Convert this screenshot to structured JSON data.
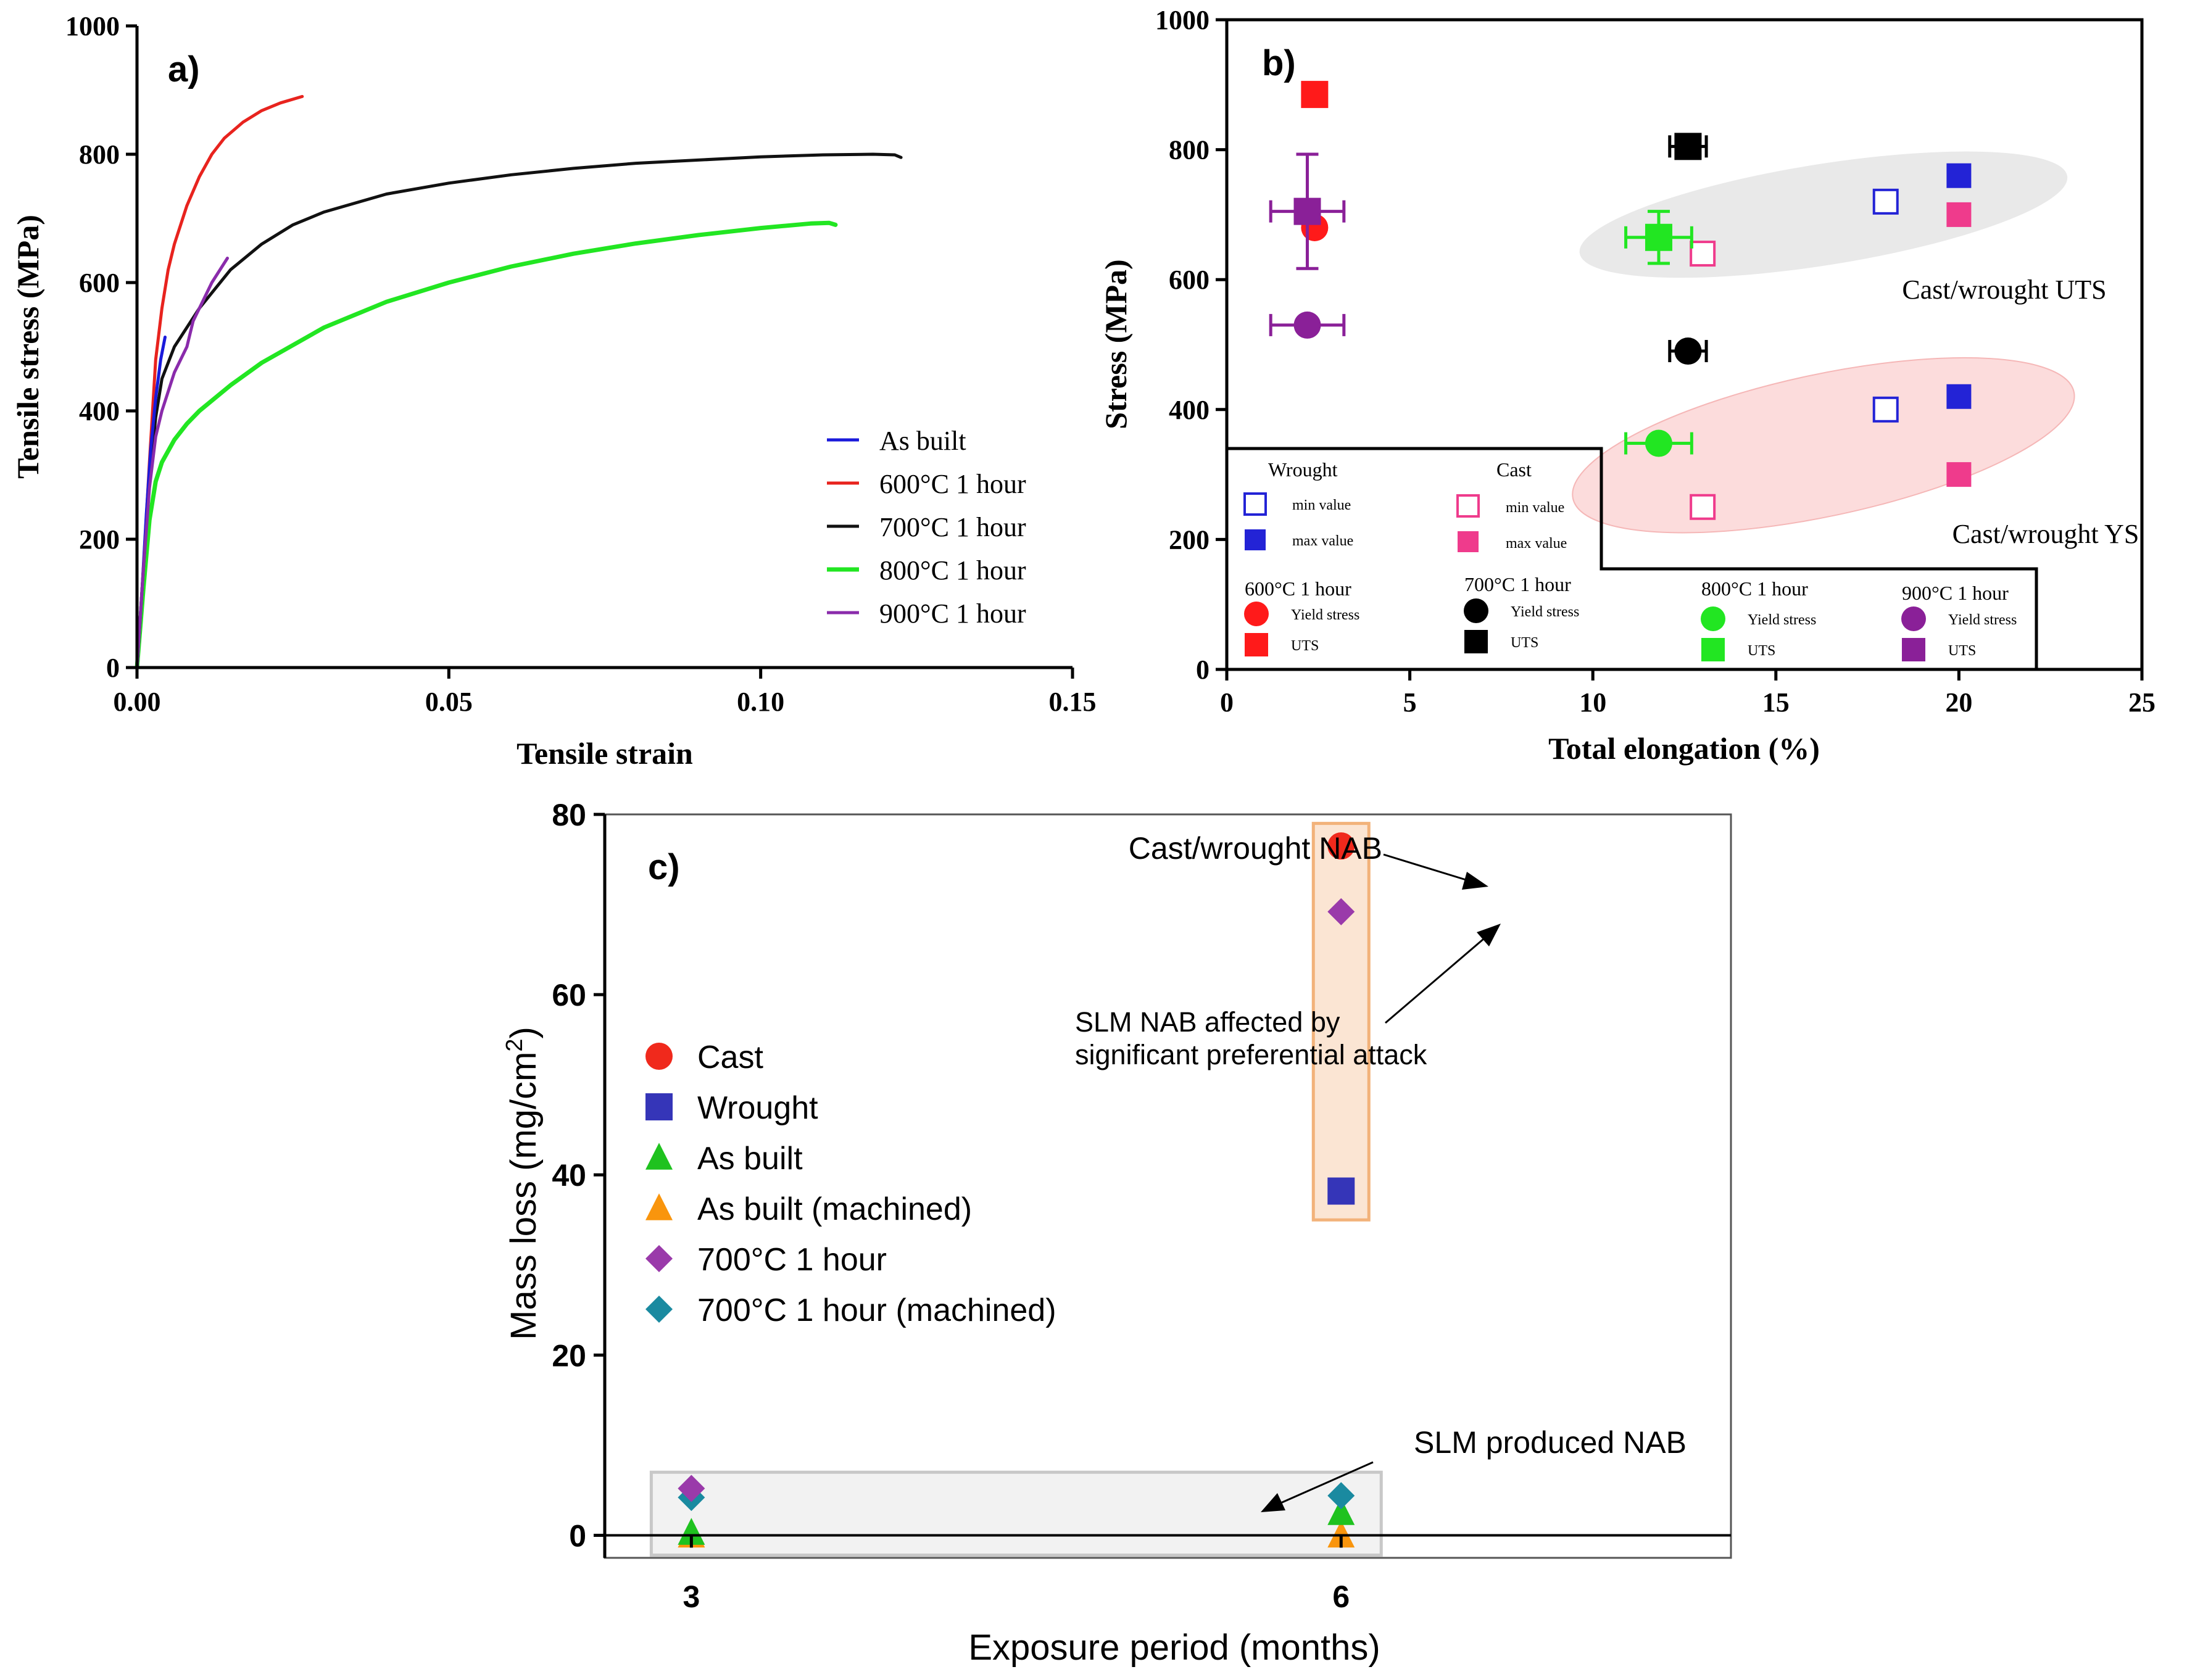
{
  "chart_data": [
    {
      "panel_label": "a)",
      "type": "line",
      "xlabel": "Tensile strain",
      "ylabel": "Tensile stress (MPa)",
      "xlim": [
        0,
        0.15
      ],
      "ylim": [
        0,
        1000
      ],
      "xticks": [
        "0.00",
        "0.05",
        "0.10",
        "0.15"
      ],
      "yticks": [
        "0",
        "200",
        "400",
        "600",
        "800",
        "1000"
      ],
      "legend_position": "lower-right",
      "series": [
        {
          "name": "As built",
          "color": "#1a1adb",
          "x": [
            0,
            0.0008,
            0.0015,
            0.0022,
            0.003,
            0.0038,
            0.0045
          ],
          "y": [
            0,
            120,
            240,
            340,
            420,
            480,
            515
          ]
        },
        {
          "name": "600°C 1 hour",
          "color": "#e8231e",
          "x": [
            0,
            0.001,
            0.002,
            0.003,
            0.004,
            0.005,
            0.006,
            0.008,
            0.01,
            0.012,
            0.014,
            0.017,
            0.02,
            0.023,
            0.0265
          ],
          "y": [
            0,
            150,
            320,
            480,
            560,
            620,
            660,
            720,
            765,
            800,
            825,
            850,
            868,
            880,
            890
          ]
        },
        {
          "name": "700°C 1 hour",
          "color": "#111111",
          "x": [
            0,
            0.001,
            0.002,
            0.003,
            0.004,
            0.006,
            0.01,
            0.015,
            0.02,
            0.025,
            0.03,
            0.04,
            0.05,
            0.06,
            0.07,
            0.08,
            0.09,
            0.1,
            0.11,
            0.118,
            0.1215,
            0.1225
          ],
          "y": [
            0,
            150,
            290,
            390,
            450,
            500,
            560,
            620,
            660,
            690,
            710,
            738,
            755,
            768,
            778,
            786,
            791,
            796,
            799,
            800,
            799,
            795
          ]
        },
        {
          "name": "800°C 1 hour",
          "color": "#22e622",
          "x": [
            0,
            0.001,
            0.002,
            0.003,
            0.004,
            0.006,
            0.008,
            0.01,
            0.015,
            0.02,
            0.03,
            0.04,
            0.05,
            0.06,
            0.07,
            0.08,
            0.09,
            0.1,
            0.108,
            0.111,
            0.112
          ],
          "y": [
            0,
            120,
            230,
            290,
            320,
            355,
            380,
            400,
            440,
            475,
            530,
            570,
            600,
            625,
            645,
            661,
            674,
            685,
            692,
            693,
            690
          ]
        },
        {
          "name": "900°C 1 hour",
          "color": "#8a2bab",
          "x": [
            0,
            0.001,
            0.002,
            0.003,
            0.004,
            0.006,
            0.008,
            0.0085,
            0.009,
            0.01,
            0.012,
            0.0145
          ],
          "y": [
            0,
            150,
            280,
            360,
            400,
            460,
            500,
            520,
            540,
            560,
            600,
            638
          ]
        }
      ]
    },
    {
      "panel_label": "b)",
      "type": "scatter",
      "xlabel": "Total elongation (%)",
      "ylabel": "Stress (MPa)",
      "xlim": [
        0,
        25
      ],
      "ylim": [
        0,
        1000
      ],
      "xticks": [
        "0",
        "5",
        "10",
        "15",
        "20",
        "25"
      ],
      "yticks": [
        "0",
        "200",
        "400",
        "600",
        "800",
        "1000"
      ],
      "legend_position": "lower-left",
      "ellipse_labels": {
        "uts": "Cast/wrought UTS",
        "ys": "Cast/wrought YS"
      },
      "colors": {
        "wrought": "#2323d6",
        "cast": "#ef3b8c",
        "c600": "#ff1a1a",
        "c700": "#000000",
        "c800": "#22e622",
        "c900": "#8a2098",
        "uts_region": "#e9e9e9",
        "ys_region": "#fcdcdc"
      },
      "reference_points": [
        {
          "group": "wrought",
          "kind": "min",
          "x": 18,
          "y": 720
        },
        {
          "group": "wrought",
          "kind": "max",
          "x": 20,
          "y": 760
        },
        {
          "group": "wrought",
          "kind": "min",
          "x": 18,
          "y": 400
        },
        {
          "group": "wrought",
          "kind": "max",
          "x": 20,
          "y": 420
        },
        {
          "group": "cast",
          "kind": "min",
          "x": 13,
          "y": 640
        },
        {
          "group": "cast",
          "kind": "max",
          "x": 20,
          "y": 700
        },
        {
          "group": "cast",
          "kind": "min",
          "x": 13,
          "y": 250
        },
        {
          "group": "cast",
          "kind": "max",
          "x": 20,
          "y": 300
        }
      ],
      "heat_treated": [
        {
          "series": "600°C 1 hour",
          "color_key": "c600",
          "ys": {
            "x": 2.4,
            "y": 680,
            "xerr": 0,
            "yerr": 0
          },
          "uts": {
            "x": 2.4,
            "y": 885,
            "xerr": 0,
            "yerr": 0
          }
        },
        {
          "series": "700°C 1 hour",
          "color_key": "c700",
          "ys": {
            "x": 12.6,
            "y": 490,
            "xerr": 0.5,
            "yerr": 0
          },
          "uts": {
            "x": 12.6,
            "y": 805,
            "xerr": 0.5,
            "yerr": 0
          }
        },
        {
          "series": "800°C 1 hour",
          "color_key": "c800",
          "ys": {
            "x": 11.8,
            "y": 348,
            "xerr": 0.9,
            "yerr": 0
          },
          "uts": {
            "x": 11.8,
            "y": 665,
            "xerr": 0.9,
            "yerr": 40
          }
        },
        {
          "series": "900°C 1 hour",
          "color_key": "c900",
          "ys": {
            "x": 2.2,
            "y": 530,
            "xerr": 1.0,
            "yerr": 0
          },
          "uts": {
            "x": 2.2,
            "y": 705,
            "xerr": 1.0,
            "yerr": 88
          }
        }
      ],
      "legend": {
        "wrought_title": "Wrought",
        "cast_title": "Cast",
        "min_label": "min value",
        "max_label": "max value",
        "ys_label": "Yield stress",
        "uts_label": "UTS"
      }
    },
    {
      "panel_label": "c)",
      "type": "scatter",
      "xlabel": "Exposure period (months)",
      "ylabel": "Mass loss (mg/cm",
      "ylabel_sup": "2",
      "ylabel_close": ")",
      "xlim": [
        2.6,
        7.8
      ],
      "ylim": [
        -2.5,
        80
      ],
      "xticks": [
        "3",
        "6"
      ],
      "yticks": [
        "0",
        "20",
        "40",
        "60",
        "80"
      ],
      "legend_position": "middle-left",
      "series": [
        {
          "name": "Cast",
          "marker": "circle",
          "color": "#f0291c",
          "points": [
            {
              "x": 6,
              "y": 76.5
            }
          ]
        },
        {
          "name": "Wrought",
          "marker": "square",
          "color": "#3535b8",
          "points": [
            {
              "x": 6,
              "y": 38.2
            }
          ]
        },
        {
          "name": "As built",
          "marker": "triangle",
          "color": "#1fc21f",
          "points": [
            {
              "x": 3,
              "y": 0.3
            },
            {
              "x": 6,
              "y": 2.5
            }
          ]
        },
        {
          "name": "As built (machined)",
          "marker": "triangle",
          "color": "#f9950d",
          "points": [
            {
              "x": 3,
              "y": 0
            },
            {
              "x": 6,
              "y": 0
            }
          ]
        },
        {
          "name": "700°C 1 hour",
          "marker": "diamond",
          "color": "#9a3aaa",
          "points": [
            {
              "x": 3,
              "y": 5.2
            },
            {
              "x": 6,
              "y": 69.2
            }
          ]
        },
        {
          "name": "700°C 1 hour (machined)",
          "marker": "diamond",
          "color": "#1a8aa0",
          "points": [
            {
              "x": 3,
              "y": 4.2
            },
            {
              "x": 6,
              "y": 4.4
            }
          ]
        }
      ],
      "regions": {
        "cast_wrought_color": "#fbe5d3",
        "cast_wrought_edge": "#f2b27a",
        "slm_color": "#f2f2f2",
        "slm_edge": "#c8c8c8"
      },
      "annotations": {
        "cast_wrought": "Cast/wrought NAB",
        "slm_attack_line1": "SLM NAB affected by",
        "slm_attack_line2": "significant preferential attack",
        "slm_produced": "SLM produced NAB"
      }
    }
  ]
}
